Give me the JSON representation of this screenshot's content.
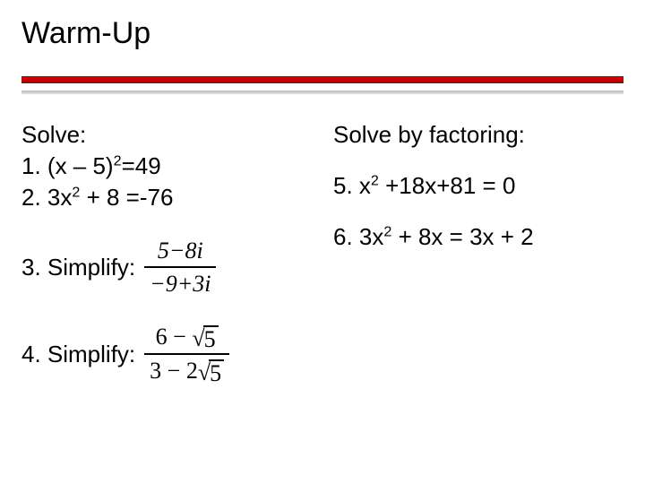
{
  "title": "Warm-Up",
  "colors": {
    "rule": "#cc0000",
    "rule_shadow_top": "#8a8a8a",
    "rule_shadow_bottom": "#d0d0d0",
    "text": "#000000",
    "background": "#ffffff"
  },
  "fonts": {
    "body": "Verdana",
    "math": "Times New Roman",
    "title_size": 34,
    "body_size": 26
  },
  "left": {
    "solve_heading": "Solve:",
    "item1_prefix": "1. (x – 5)",
    "item1_exp": "2",
    "item1_suffix": "=49",
    "item2_prefix": "2. 3x",
    "item2_exp": "2",
    "item2_suffix": " + 8 =-76",
    "item3_label": "3. Simplify:",
    "item3_fraction": {
      "num_a": "5",
      "num_op": "−",
      "num_b": "8",
      "num_i": "i",
      "den_a": "−9",
      "den_op": "+",
      "den_b": "3",
      "den_i": "i"
    },
    "item4_label": "4. Simplify:",
    "item4_fraction": {
      "num_a": "6",
      "num_op": "−",
      "num_rad": "5",
      "den_a": "3",
      "den_op": "−",
      "den_coef": "2",
      "den_rad": "5"
    }
  },
  "right": {
    "heading": "Solve by factoring:",
    "item5_prefix": "5. x",
    "item5_exp": "2",
    "item5_suffix": " +18x+81 = 0",
    "item6_prefix": "6. 3x",
    "item6_exp": "2",
    "item6_suffix": " + 8x = 3x + 2"
  }
}
